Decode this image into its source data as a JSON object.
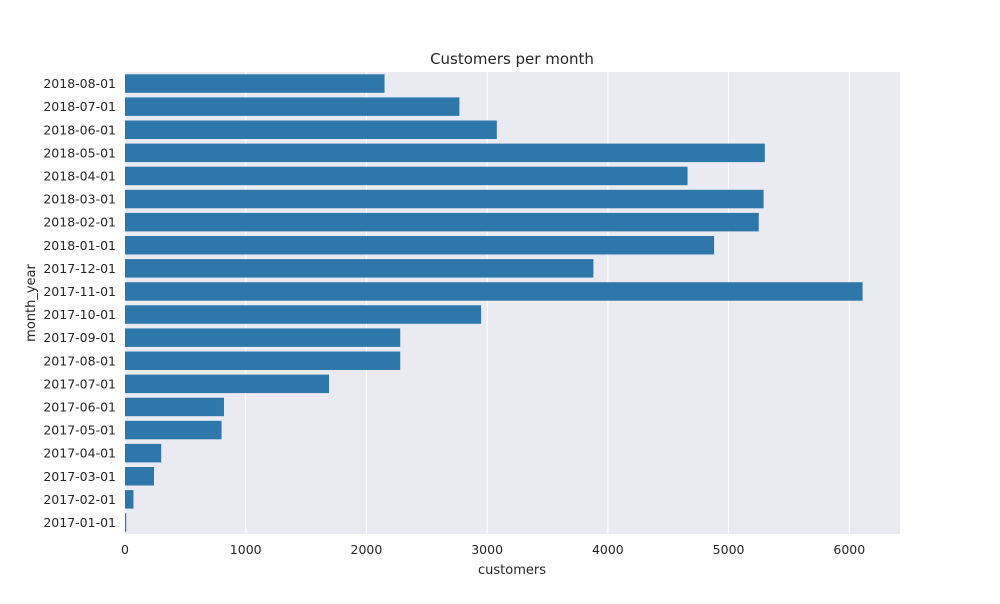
{
  "chart_data": {
    "type": "bar",
    "orientation": "horizontal",
    "title": "Customers per month",
    "xlabel": "customers",
    "ylabel": "month_year",
    "categories": [
      "2018-08-01",
      "2018-07-01",
      "2018-06-01",
      "2018-05-01",
      "2018-04-01",
      "2018-03-01",
      "2018-02-01",
      "2018-01-01",
      "2017-12-01",
      "2017-11-01",
      "2017-10-01",
      "2017-09-01",
      "2017-08-01",
      "2017-07-01",
      "2017-06-01",
      "2017-05-01",
      "2017-04-01",
      "2017-03-01",
      "2017-02-01",
      "2017-01-01"
    ],
    "values": [
      2150,
      2770,
      3080,
      5300,
      4660,
      5290,
      5250,
      4880,
      3880,
      6110,
      2950,
      2280,
      2280,
      1690,
      820,
      800,
      300,
      240,
      70,
      10
    ],
    "xlim": [
      0,
      6420
    ],
    "xticks": [
      0,
      1000,
      2000,
      3000,
      4000,
      5000,
      6000
    ],
    "grid": true,
    "colors": {
      "bar": "#2e77aa",
      "plot_background": "#eaeaf2",
      "grid": "#ffffff",
      "figure_background": "#ffffff"
    }
  }
}
